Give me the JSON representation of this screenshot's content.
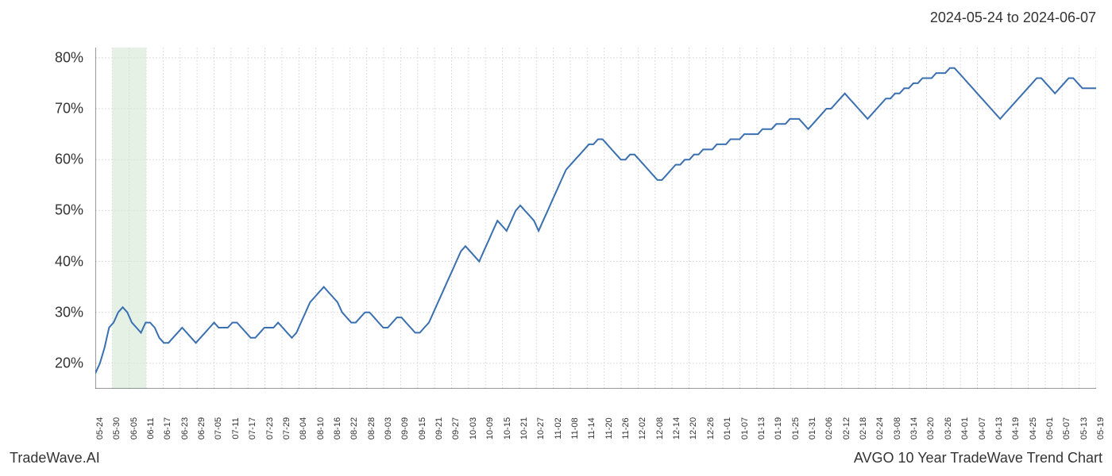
{
  "header": {
    "date_range": "2024-05-24 to 2024-06-07"
  },
  "footer": {
    "left": "TradeWave.AI",
    "right": "AVGO 10 Year TradeWave Trend Chart"
  },
  "chart": {
    "type": "line",
    "background_color": "#ffffff",
    "grid_color": "#dddddd",
    "axis_color": "#333333",
    "line_color": "#3a6fb0",
    "line_width": 2,
    "highlight_band_color": "#d4e8d4",
    "highlight_start_index": 1,
    "highlight_end_index": 3,
    "label_fontsize": 18,
    "xlabel_fontsize": 11,
    "ylim": [
      15,
      82
    ],
    "ytick_values": [
      20,
      30,
      40,
      50,
      60,
      70,
      80
    ],
    "ytick_labels": [
      "20%",
      "30%",
      "40%",
      "50%",
      "60%",
      "70%",
      "80%"
    ],
    "x_labels": [
      "05-24",
      "05-30",
      "06-05",
      "06-11",
      "06-17",
      "06-23",
      "06-29",
      "07-05",
      "07-11",
      "07-17",
      "07-23",
      "07-29",
      "08-04",
      "08-10",
      "08-16",
      "08-22",
      "08-28",
      "09-03",
      "09-09",
      "09-15",
      "09-21",
      "09-27",
      "10-03",
      "10-09",
      "10-15",
      "10-21",
      "10-27",
      "11-02",
      "11-08",
      "11-14",
      "11-20",
      "11-26",
      "12-02",
      "12-08",
      "12-14",
      "12-20",
      "12-26",
      "01-01",
      "01-07",
      "01-13",
      "01-19",
      "01-25",
      "01-31",
      "02-06",
      "02-12",
      "02-18",
      "02-24",
      "03-08",
      "03-14",
      "03-20",
      "03-26",
      "04-01",
      "04-07",
      "04-13",
      "04-19",
      "04-25",
      "05-01",
      "05-07",
      "05-13",
      "05-19"
    ],
    "values": [
      18,
      20,
      23,
      27,
      28,
      30,
      31,
      30,
      28,
      27,
      26,
      28,
      28,
      27,
      25,
      24,
      24,
      25,
      26,
      27,
      26,
      25,
      24,
      25,
      26,
      27,
      28,
      27,
      27,
      27,
      28,
      28,
      27,
      26,
      25,
      25,
      26,
      27,
      27,
      27,
      28,
      27,
      26,
      25,
      26,
      28,
      30,
      32,
      33,
      34,
      35,
      34,
      33,
      32,
      30,
      29,
      28,
      28,
      29,
      30,
      30,
      29,
      28,
      27,
      27,
      28,
      29,
      29,
      28,
      27,
      26,
      26,
      27,
      28,
      30,
      32,
      34,
      36,
      38,
      40,
      42,
      43,
      42,
      41,
      40,
      42,
      44,
      46,
      48,
      47,
      46,
      48,
      50,
      51,
      50,
      49,
      48,
      46,
      48,
      50,
      52,
      54,
      56,
      58,
      59,
      60,
      61,
      62,
      63,
      63,
      64,
      64,
      63,
      62,
      61,
      60,
      60,
      61,
      61,
      60,
      59,
      58,
      57,
      56,
      56,
      57,
      58,
      59,
      59,
      60,
      60,
      61,
      61,
      62,
      62,
      62,
      63,
      63,
      63,
      64,
      64,
      64,
      65,
      65,
      65,
      65,
      66,
      66,
      66,
      67,
      67,
      67,
      68,
      68,
      68,
      67,
      66,
      67,
      68,
      69,
      70,
      70,
      71,
      72,
      73,
      72,
      71,
      70,
      69,
      68,
      69,
      70,
      71,
      72,
      72,
      73,
      73,
      74,
      74,
      75,
      75,
      76,
      76,
      76,
      77,
      77,
      77,
      78,
      78,
      77,
      76,
      75,
      74,
      73,
      72,
      71,
      70,
      69,
      68,
      69,
      70,
      71,
      72,
      73,
      74,
      75,
      76,
      76,
      75,
      74,
      73,
      74,
      75,
      76,
      76,
      75,
      74,
      74,
      74,
      74
    ]
  }
}
